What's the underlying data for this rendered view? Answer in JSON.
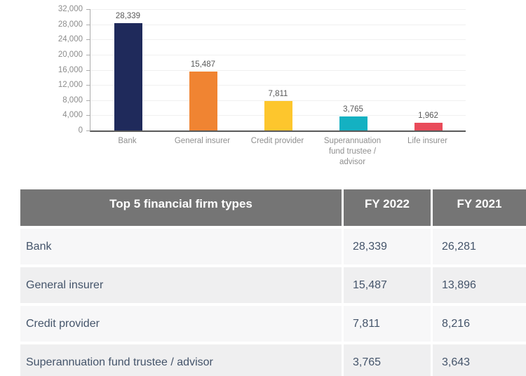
{
  "chart_data": {
    "type": "bar",
    "title": "",
    "xlabel": "",
    "ylabel": "",
    "categories": [
      "Bank",
      "General insurer",
      "Credit provider",
      "Superannuation fund trustee / advisor",
      "Life insurer"
    ],
    "values": [
      28339,
      15487,
      7811,
      3765,
      1962
    ],
    "value_labels": [
      "28,339",
      "15,487",
      "7,811",
      "3,765",
      "1,962"
    ],
    "bar_colors": [
      "#1f2a5b",
      "#f08432",
      "#fdc62d",
      "#14b1c2",
      "#e94b5a"
    ],
    "ylim": [
      0,
      32000
    ],
    "ytick_step": 4000,
    "ytick_labels": [
      "32,000",
      "28,000",
      "24,000",
      "20,000",
      "16,000",
      "12,000",
      "8,000",
      "4,000",
      "0"
    ],
    "grid": true,
    "legend": "none"
  },
  "table": {
    "header": {
      "firm_type": "Top 5 financial firm types",
      "fy2022": "FY 2022",
      "fy2021": "FY 2021"
    },
    "rows": [
      {
        "label": "Bank",
        "fy2022": "28,339",
        "fy2021": "26,281"
      },
      {
        "label": "General insurer",
        "fy2022": "15,487",
        "fy2021": "13,896"
      },
      {
        "label": "Credit provider",
        "fy2022": "7,811",
        "fy2021": "8,216"
      },
      {
        "label": "Superannuation fund trustee / advisor",
        "fy2022": "3,765",
        "fy2021": "3,643"
      }
    ],
    "colors": {
      "header_bg": "#757575",
      "header_text": "#ffffff",
      "body_text": "#44546a",
      "row_light": "#f7f7f8",
      "row_shaded": "#efeff0"
    }
  }
}
